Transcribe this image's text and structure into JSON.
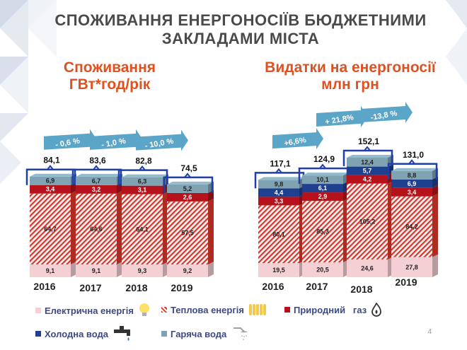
{
  "title_line1": "СПОЖИВАННЯ ЕНЕРГОНОСІЇВ БЮДЖЕТНИМИ",
  "title_line2": "ЗАКЛАДАМИ МІСТА",
  "left_subtitle_line1": "Споживання",
  "left_subtitle_line2": "ГВт*год/рік",
  "right_subtitle_line1": "Видатки на енергоносії",
  "right_subtitle_line2": "млн грн",
  "page_number": "4",
  "colors": {
    "electric": "#f4cfd3",
    "heat": "#d9362b",
    "gas": "#b5121b",
    "cold_water": "#1f3f8f",
    "hot_water": "#7fa3b3",
    "bracket": "#1f3faa",
    "arrow": "#5ba5c9",
    "title": "#4a4a4a",
    "subtitle": "#e2501f",
    "legend": "#3d4a82"
  },
  "legend": [
    {
      "key": "electric",
      "label": "Електрична енергія",
      "icon": "lightbulb-icon"
    },
    {
      "key": "heat",
      "label": "Теплова енергія",
      "icon": "radiator-icon"
    },
    {
      "key": "gas",
      "label": "Природний   газ",
      "icon": "gas-flame-icon"
    },
    {
      "key": "cold_water",
      "label": "Холодна вода",
      "icon": "water-tap-icon"
    },
    {
      "key": "hot_water",
      "label": "Гаряча вода",
      "icon": "shower-icon"
    }
  ],
  "chart_data": [
    {
      "type": "bar",
      "stacked": true,
      "title": "Споживання ГВт*год/рік",
      "categories": [
        "2016",
        "2017",
        "2018",
        "2019"
      ],
      "totals": [
        "84,1",
        "83,6",
        "82,8",
        "74,5"
      ],
      "changes": [
        "- 0,6 %",
        "- 1,0 %",
        "- 10,0 %"
      ],
      "series": [
        {
          "name": "Електрична енергія",
          "key": "electric",
          "values": [
            9.1,
            9.1,
            9.3,
            9.2
          ],
          "labels": [
            "9,1",
            "9,1",
            "9,3",
            "9,2"
          ]
        },
        {
          "name": "Теплова енергія",
          "key": "heat",
          "values": [
            64.7,
            64.6,
            64.1,
            57.5
          ],
          "labels": [
            "64,7",
            "64,6",
            "64,1",
            "57,5"
          ]
        },
        {
          "name": "Природний газ",
          "key": "gas",
          "values": [
            3.4,
            3.2,
            3.1,
            2.6
          ],
          "labels": [
            "3,4",
            "3,2",
            "3,1",
            "2,6"
          ]
        },
        {
          "name": "Гаряча вода",
          "key": "hot_water",
          "values": [
            6.9,
            6.7,
            6.3,
            5.2
          ],
          "labels": [
            "6,9",
            "6,7",
            "6,3",
            "5,2"
          ]
        }
      ]
    },
    {
      "type": "bar",
      "stacked": true,
      "title": "Видатки на енергоносії млн грн",
      "categories": [
        "2016",
        "2017",
        "2018",
        "2019"
      ],
      "totals": [
        "117,1",
        "124,9",
        "152,1",
        "131,0"
      ],
      "changes": [
        "+6,6%",
        "+ 21,8%",
        "-13,8 %"
      ],
      "series": [
        {
          "name": "Електрична енергія",
          "key": "electric",
          "values": [
            19.5,
            20.5,
            24.6,
            27.8
          ],
          "labels": [
            "19,5",
            "20,5",
            "24,6",
            "27,8"
          ]
        },
        {
          "name": "Теплова енергія",
          "key": "heat",
          "values": [
            80.1,
            85.3,
            105.2,
            84.2
          ],
          "labels": [
            "80,1",
            "85,3",
            "105,2",
            "84,2"
          ]
        },
        {
          "name": "Природний газ",
          "key": "gas",
          "values": [
            3.3,
            2.9,
            4.2,
            3.4
          ],
          "labels": [
            "3,3",
            "2,9",
            "4,2",
            "3,4"
          ]
        },
        {
          "name": "Холодна вода",
          "key": "cold_water",
          "values": [
            4.4,
            6.1,
            5.7,
            6.9
          ],
          "labels": [
            "4,4",
            "6,1",
            "5,7",
            "6,9"
          ]
        },
        {
          "name": "Гаряча вода",
          "key": "hot_water",
          "values": [
            9.8,
            10.1,
            12.4,
            8.8
          ],
          "labels": [
            "9,8",
            "10,1",
            "12,4",
            "8,8"
          ]
        }
      ]
    }
  ]
}
